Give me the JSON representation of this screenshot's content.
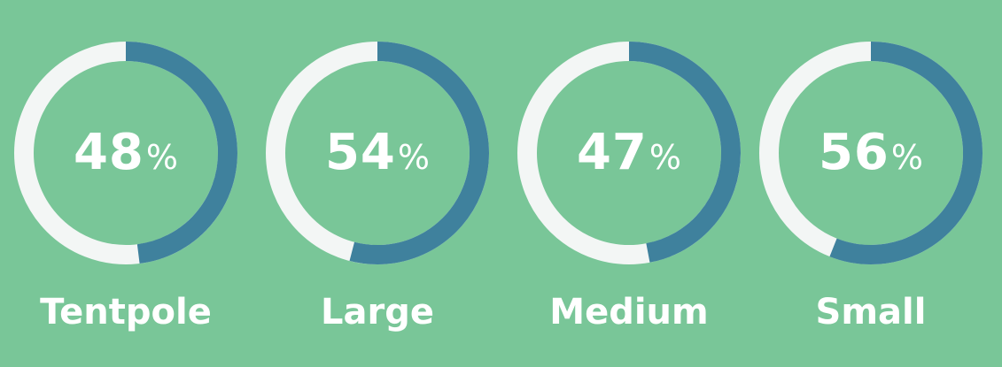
{
  "chart_data": {
    "type": "pie",
    "title": "",
    "unit": "%",
    "categories": [
      "Tentpole",
      "Large",
      "Medium",
      "Small"
    ],
    "values": [
      48,
      54,
      47,
      56
    ],
    "max": 100,
    "legend": "none",
    "grid": false,
    "colors": {
      "background": "#79c698",
      "arc_filled": "#3f819d",
      "arc_track": "#f3f6f5",
      "text": "#ffffff"
    }
  },
  "gauges": [
    {
      "value": "48",
      "unit": "%",
      "label": "Tentpole"
    },
    {
      "value": "54",
      "unit": "%",
      "label": "Large"
    },
    {
      "value": "47",
      "unit": "%",
      "label": "Medium"
    },
    {
      "value": "56",
      "unit": "%",
      "label": "Small"
    }
  ]
}
